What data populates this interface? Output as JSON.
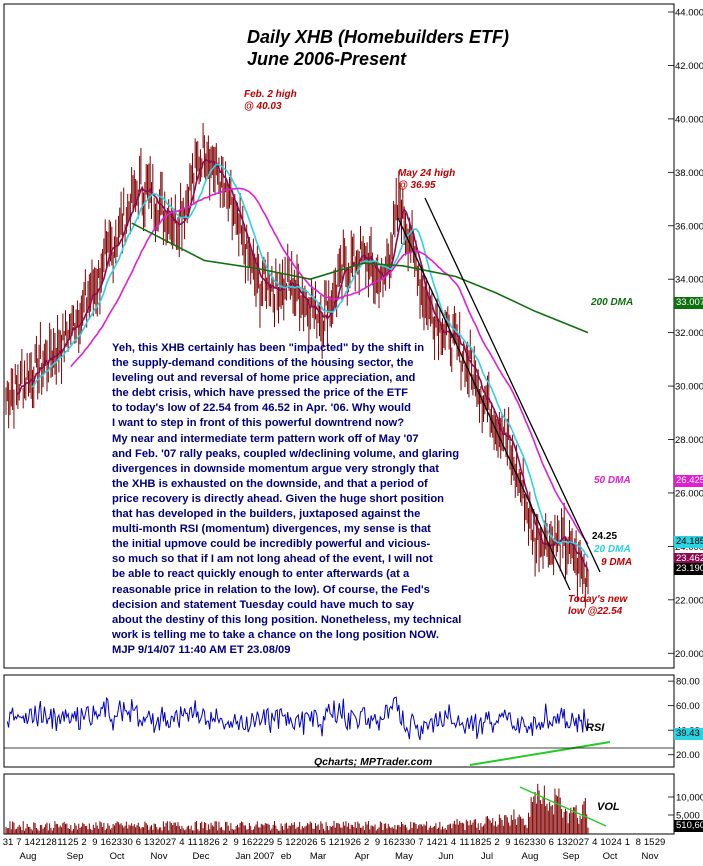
{
  "title_line1": "Daily XHB (Homebuilders ETF)",
  "title_line2": "June 2006-Present",
  "commentary": "Yeh, this XHB certainly has been \"impacted\" by the shift in\nthe supply-demand conditions of the housing sector, the\nleveling out and reversal of home price appreciation, and\nthe debt crisis, which have pressed the price of the ETF\nto today's low of 22.54 from 46.52 in Apr. '06. Why would\nI want to step in front of this powerful downtrend now?\nMy near and intermediate term pattern work off of May '07\nand Feb. '07 rally  peaks, coupled w/declining volume, and glaring\ndivergences in downside momentum argue very strongly that\nthe XHB is exhausted on the downside, and that a period of\nprice recovery is directly ahead. Given the huge short position\nthat has developed in the builders, juxtaposed against the\nmulti-month RSI (momentum) divergences, my sense is that\nthe initial upmove could be incredibly powerful and vicious-\nso much so that if I am not long ahead of the event, I will not\nbe able to react quickly enough to enter afterwards (at a\nreasonable price in relation to the low). Of course, the Fed's\ndecision and statement Tuesday could have much to say\nabout the destiny of this long position. Nonetheless, my technical\nwork is telling me to take a chance on the long position NOW.\nMJP 9/14/07  11:40 AM ET  23.08/09",
  "annotations": {
    "feb_high": "Feb. 2 high\n@ 40.03",
    "may_high": "May 24 high\n@ 36.95",
    "dma200": "200 DMA",
    "dma50": "50 DMA",
    "dma20": "20 DMA",
    "dma9": "9 DMA",
    "level": "24.25",
    "new_low": "Today's new\nlow @22.54",
    "rsi": "RSI",
    "vol": "VOL",
    "credit": "Qcharts; MPTrader.com"
  },
  "right_boxes": {
    "dma200": "33.007",
    "dma50": "26.425",
    "dma20": "24.185",
    "dma9": "23.462",
    "close": "23.190",
    "rsi": "39.43",
    "vol": "510,60"
  },
  "colors": {
    "price_bars": "#800000",
    "dma9": "#8b0a50",
    "dma20": "#2dd2e0",
    "dma50": "#e020d0",
    "dma200": "#107010",
    "rsi_line": "#0000cc",
    "green_trend": "#22cc22",
    "commentary": "#000080",
    "annotation": "#c00000"
  },
  "chart_data": [
    {
      "type": "ohlc",
      "panel": "price",
      "ylim": [
        19,
        44
      ],
      "y_ticks": [
        "20.0000",
        "22.0000",
        "24.0000",
        "26.0000",
        "28.0000",
        "30.0000",
        "32.0000",
        "34.0000",
        "36.0000",
        "38.0000",
        "40.0000",
        "42.0000",
        "44.0000"
      ],
      "x_day_labels": [
        "31",
        "7",
        "14",
        "21",
        "28",
        "11",
        "25",
        "2",
        "9",
        "16",
        "23",
        "30",
        "6",
        "13",
        "20",
        "27",
        "4",
        "11",
        "18",
        "26",
        "2",
        "9",
        "16",
        "22",
        "29",
        "5",
        "12",
        "20",
        "26",
        "5",
        "12",
        "19",
        "26",
        "2",
        "9",
        "16",
        "23",
        "30",
        "7",
        "14",
        "21",
        "4",
        "11",
        "18",
        "25",
        "2",
        "9",
        "16",
        "23",
        "30",
        "6",
        "13",
        "20",
        "27",
        "4",
        "10",
        "24",
        "1",
        "8",
        "15",
        "29"
      ],
      "x_month_labels": [
        "Aug",
        "Sep",
        "Oct",
        "Nov",
        "Dec",
        "Jan 2007",
        "eb",
        "Mar",
        "Apr",
        "May",
        "Jun",
        "Jul",
        "Aug",
        "Sep",
        "Oct",
        "Nov"
      ],
      "anchors": {
        "start": 29.6,
        "peak_feb": 40.03,
        "peak_may": 36.95,
        "low_today": 22.54,
        "close": 23.19
      }
    },
    {
      "type": "line",
      "panel": "rsi",
      "name": "RSI",
      "y_ticks": [
        "20.00",
        "40.00",
        "60.00",
        "80.00"
      ],
      "ylim": [
        10,
        85
      ],
      "last": 39.43
    },
    {
      "type": "bar",
      "panel": "volume",
      "name": "VOL",
      "y_ticks": [
        "10,000",
        "5,000"
      ],
      "last": 510.6
    }
  ]
}
